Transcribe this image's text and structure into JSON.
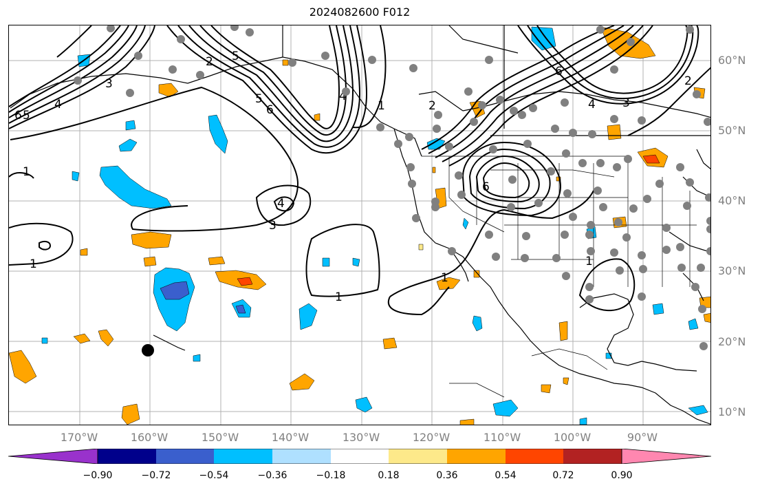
{
  "title": "2024082600 F012",
  "lat_labels": [
    "60°N",
    "50°N",
    "40°N",
    "30°N",
    "20°N",
    "10°N"
  ],
  "lon_labels": [
    "170°W",
    "160°W",
    "150°W",
    "140°W",
    "130°W",
    "120°W",
    "110°W",
    "100°W",
    "90°W"
  ],
  "colorbar": {
    "ticks": [
      "−0.90",
      "−0.72",
      "−0.54",
      "−0.36",
      "−0.18",
      "0.18",
      "0.36",
      "0.54",
      "0.72",
      "0.90"
    ],
    "colors": [
      "#9932cc",
      "#00008b",
      "#3a5fcd",
      "#00bfff",
      "#afe0ff",
      "#ffffff",
      "#fde98a",
      "#ffa500",
      "#ff4500",
      "#b22222",
      "#ff87b0"
    ]
  },
  "contour_labels": [
    "1",
    "1",
    "1",
    "1",
    "1",
    "1",
    "2",
    "2",
    "2",
    "3",
    "3",
    "3",
    "4",
    "4",
    "4",
    "5",
    "5",
    "6",
    "6",
    "6",
    "4",
    "5",
    "6"
  ],
  "marker_colors": {
    "station": "#808080",
    "highlight": "#000000"
  }
}
